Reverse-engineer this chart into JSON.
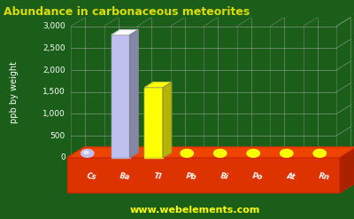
{
  "title": "Abundance in carbonaceous meteorites",
  "ylabel": "ppb by weight",
  "watermark": "www.webelements.com",
  "categories": [
    "Cs",
    "Ba",
    "Tl",
    "Pb",
    "Bi",
    "Po",
    "At",
    "Rn"
  ],
  "values": [
    20,
    2800,
    1600,
    100,
    100,
    100,
    100,
    100
  ],
  "bar_colors": [
    "#c0c0f0",
    "#c0c0f0",
    "#ffff00",
    "#ffff00",
    "#ffff00",
    "#ffff00",
    "#ffff00",
    "#ffff00"
  ],
  "background_color": "#1a5e1a",
  "platform_color": "#cc3300",
  "ylim": [
    0,
    3000
  ],
  "yticks": [
    0,
    500,
    1000,
    1500,
    2000,
    2500,
    3000
  ],
  "title_color": "#dddd00",
  "ylabel_color": "#ffffff",
  "tick_color": "#ffffff",
  "grid_color": "#aaaaaa",
  "watermark_color": "#ffff00",
  "label_color": "#ffffff"
}
